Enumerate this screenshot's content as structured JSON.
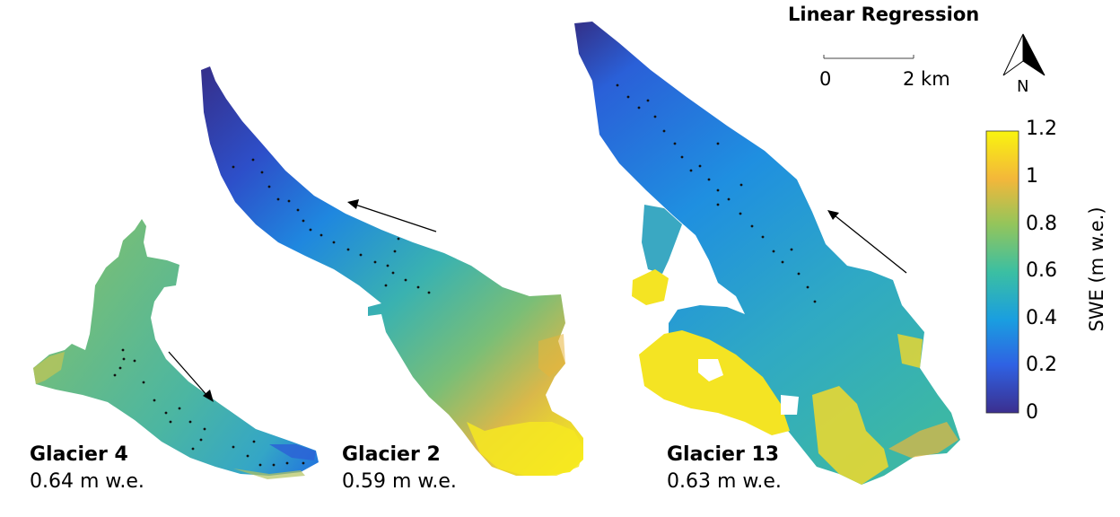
{
  "title": "Linear Regression",
  "scale_bar": {
    "start_label": "0",
    "end_label": "2 km"
  },
  "north_arrow": {
    "label": "N",
    "icon": "north-arrow-icon"
  },
  "colorbar": {
    "label": "SWE (m w.e.)",
    "ticks": [
      "1.2",
      "1",
      "0.8",
      "0.6",
      "0.4",
      "0.2",
      "0"
    ],
    "colors": [
      "#3b2f8f",
      "#2f62e3",
      "#1a9ee0",
      "#3bbfa2",
      "#94c55b",
      "#f3b73a",
      "#f9f40f"
    ]
  },
  "glaciers": [
    {
      "name": "Glacier 4",
      "value": "0.64 m w.e."
    },
    {
      "name": "Glacier 2",
      "value": "0.59 m w.e."
    },
    {
      "name": "Glacier 13",
      "value": "0.63 m w.e."
    }
  ]
}
